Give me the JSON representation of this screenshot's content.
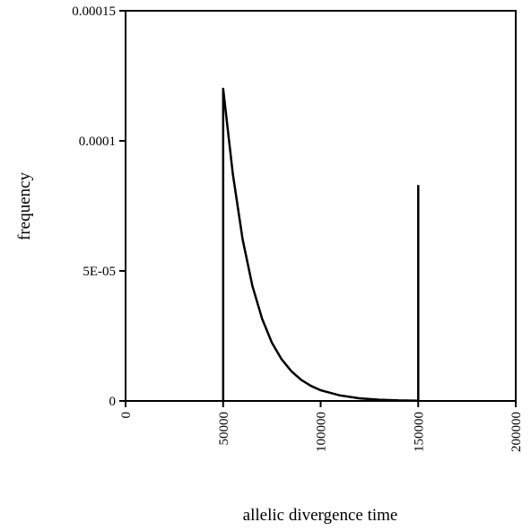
{
  "chart_data": {
    "type": "line",
    "title": "",
    "xlabel": "allelic divergence time",
    "ylabel": "frequency",
    "xlim": [
      0,
      200000
    ],
    "ylim": [
      0,
      0.00015
    ],
    "x_ticks": [
      0,
      50000,
      100000,
      150000,
      200000
    ],
    "x_tick_labels": [
      "0",
      "50000",
      "100000",
      "150000",
      "200000"
    ],
    "y_ticks": [
      0,
      5e-05,
      0.0001,
      0.00015
    ],
    "y_tick_labels": [
      "0",
      "5E-05",
      "0.0001",
      "0.00015"
    ],
    "grid": false,
    "legend": "none",
    "series": [
      {
        "x": [
          50000,
          50000,
          55000,
          60000,
          65000,
          70000,
          75000,
          80000,
          85000,
          90000,
          95000,
          100000,
          110000,
          120000,
          130000,
          140000,
          150000
        ],
        "y": [
          0,
          0.00012,
          8.72e-05,
          6.21e-05,
          4.42e-05,
          3.15e-05,
          2.24e-05,
          1.6e-05,
          1.14e-05,
          8.1e-06,
          5.8e-06,
          4.1e-06,
          2.1e-06,
          1e-06,
          5e-07,
          2e-07,
          1e-07
        ]
      },
      {
        "x": [
          150000,
          150000
        ],
        "y": [
          0,
          8.3e-05
        ]
      }
    ]
  }
}
